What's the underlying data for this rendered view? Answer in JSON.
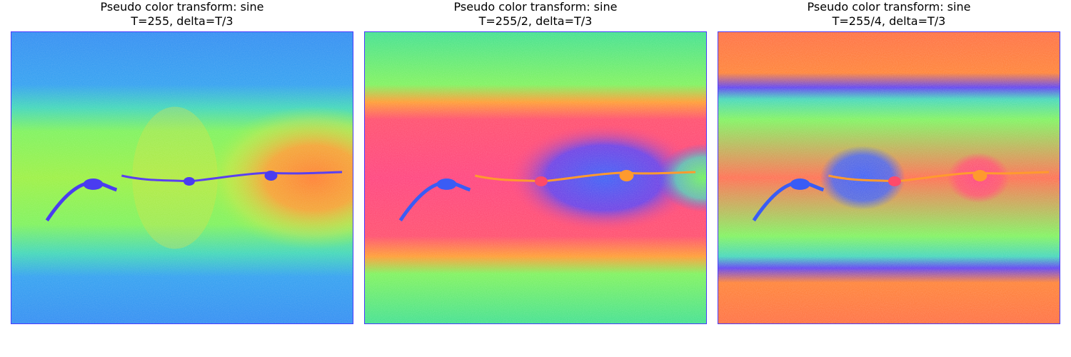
{
  "figure": {
    "panels": [
      {
        "title_line1": "Pseudo color transform: sine",
        "title_line2": "T=255, delta=T/3"
      },
      {
        "title_line1": "Pseudo color transform: sine",
        "title_line2": "T=255/2, delta=T/3"
      },
      {
        "title_line1": "Pseudo color transform: sine",
        "title_line2": "T=255/4, delta=T/3"
      }
    ]
  }
}
